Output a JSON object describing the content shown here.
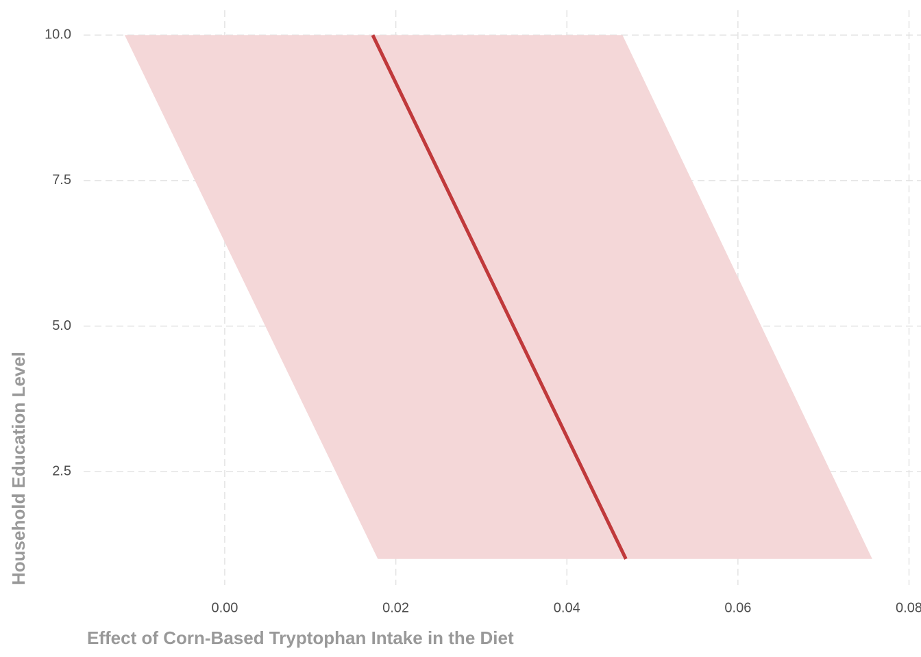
{
  "chart_data": {
    "type": "line",
    "xlabel": "Effect of Corn-Based Tryptophan Intake in the Diet",
    "ylabel": "Household Education Level",
    "series": [
      {
        "color": "#c0393b",
        "band_color": "#f4d7d8",
        "y": [
          1,
          10
        ],
        "x": [
          0.0469,
          0.0173
        ],
        "lower": [
          0.0179,
          -0.0117
        ],
        "upper": [
          0.0757,
          0.0465
        ]
      }
    ],
    "xlim": [
      -0.0165,
      0.0814
    ],
    "xticks": [
      {
        "value": 0,
        "label": "0.00"
      },
      {
        "value": 0.02,
        "label": "0.02"
      },
      {
        "value": 0.04,
        "label": "0.04"
      },
      {
        "value": 0.06,
        "label": "0.06"
      },
      {
        "value": 0.08,
        "label": "0.08"
      }
    ],
    "ylim": [
      0.55,
      10.25
    ],
    "yticks": [
      {
        "value": 2.5,
        "label": "2.5"
      },
      {
        "value": 5,
        "label": "5.0"
      },
      {
        "value": 7.5,
        "label": "7.5"
      },
      {
        "value": 10,
        "label": "10.0"
      }
    ],
    "grid": true
  }
}
